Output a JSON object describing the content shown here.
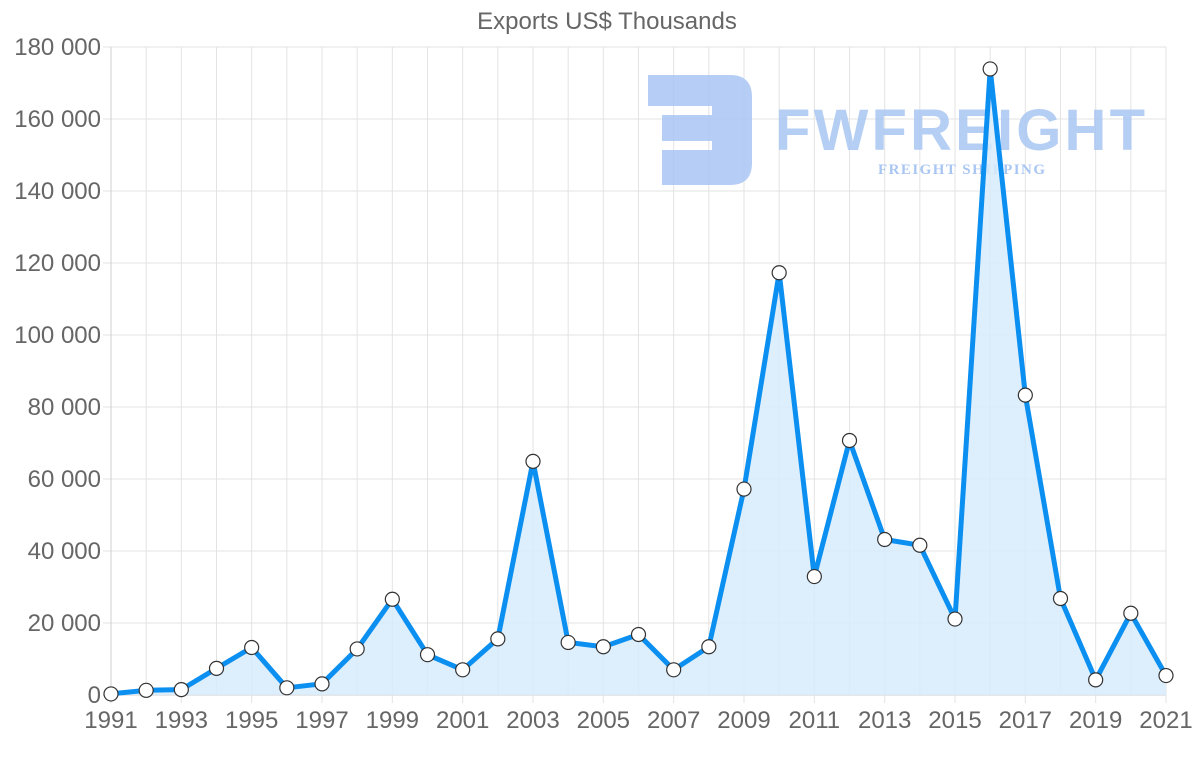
{
  "chart_data": {
    "type": "line",
    "title": "Exports US$ Thousands",
    "xlabel": "",
    "ylabel": "",
    "categories": [
      1991,
      1992,
      1993,
      1994,
      1995,
      1996,
      1997,
      1998,
      1999,
      2000,
      2001,
      2002,
      2003,
      2004,
      2005,
      2006,
      2007,
      2008,
      2009,
      2010,
      2011,
      2012,
      2013,
      2014,
      2015,
      2016,
      2017,
      2018,
      2019,
      2020,
      2021
    ],
    "series": [
      {
        "name": "Exports US$ Thousands",
        "values": [
          300,
          1300,
          1500,
          7400,
          13200,
          2000,
          3100,
          12800,
          26600,
          11200,
          7000,
          15600,
          64900,
          14600,
          13400,
          16800,
          7000,
          13400,
          57200,
          117300,
          32900,
          70700,
          43200,
          41600,
          21100,
          173900,
          83300,
          26800,
          4200,
          22700,
          5400
        ],
        "color": "#0b8ff0",
        "fill": "#d7ebfc"
      }
    ],
    "ylim": [
      0,
      180000
    ],
    "yticks": [
      0,
      20000,
      40000,
      60000,
      80000,
      100000,
      120000,
      140000,
      160000,
      180000
    ],
    "ytick_labels": [
      "0",
      "20 000",
      "40 000",
      "60 000",
      "80 000",
      "100 000",
      "120 000",
      "140 000",
      "160 000",
      "180 000"
    ],
    "xtick_labels": [
      "1991",
      "1993",
      "1995",
      "1997",
      "1999",
      "2001",
      "2003",
      "2005",
      "2007",
      "2009",
      "2011",
      "2013",
      "2015",
      "2017",
      "2019",
      "2021"
    ],
    "grid": true,
    "legend": "none"
  },
  "watermark": {
    "brand": "FWFREIGHT",
    "tagline": "FREIGHT SHIPPING",
    "color": "#a9c6f3"
  }
}
